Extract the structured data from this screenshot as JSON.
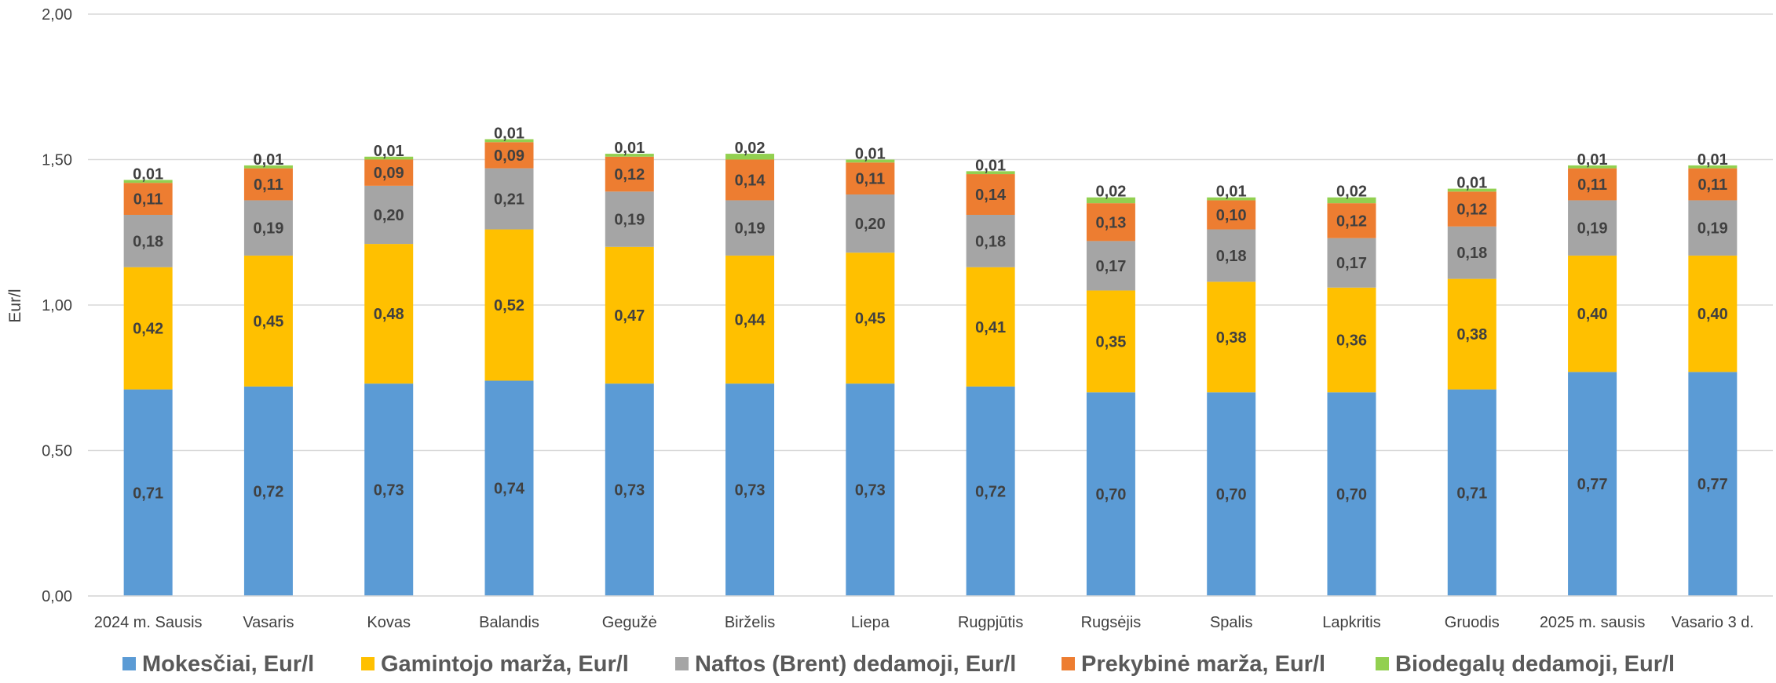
{
  "chart_data": {
    "type": "bar",
    "stacked": true,
    "ylabel": "Eur/l",
    "ylim": [
      0,
      2
    ],
    "yticks": [
      "0,00",
      "0,50",
      "1,00",
      "1,50",
      "2,00"
    ],
    "grid": true,
    "legend_position": "bottom",
    "categories": [
      "2024 m. Sausis",
      "Vasaris",
      "Kovas",
      "Balandis",
      "Gegužė",
      "Birželis",
      "Liepa",
      "Rugpjūtis",
      "Rugsėjis",
      "Spalis",
      "Lapkritis",
      "Gruodis",
      "2025 m. sausis",
      "Vasario 3 d."
    ],
    "series": [
      {
        "name": "Mokesčiai, Eur/l",
        "color": "#5B9BD5",
        "values": [
          0.71,
          0.72,
          0.73,
          0.74,
          0.73,
          0.73,
          0.73,
          0.72,
          0.7,
          0.7,
          0.7,
          0.71,
          0.77,
          0.77
        ],
        "labels": [
          "0,71",
          "0,72",
          "0,73",
          "0,74",
          "0,73",
          "0,73",
          "0,73",
          "0,72",
          "0,70",
          "0,70",
          "0,70",
          "0,71",
          "0,77",
          "0,77"
        ]
      },
      {
        "name": "Gamintojo marža, Eur/l",
        "color": "#FFC000",
        "values": [
          0.42,
          0.45,
          0.48,
          0.52,
          0.47,
          0.44,
          0.45,
          0.41,
          0.35,
          0.38,
          0.36,
          0.38,
          0.4,
          0.4
        ],
        "labels": [
          "0,42",
          "0,45",
          "0,48",
          "0,52",
          "0,47",
          "0,44",
          "0,45",
          "0,41",
          "0,35",
          "0,38",
          "0,36",
          "0,38",
          "0,40",
          "0,40"
        ]
      },
      {
        "name": "Naftos (Brent) dedamoji, Eur/l",
        "color": "#A5A5A5",
        "values": [
          0.18,
          0.19,
          0.2,
          0.21,
          0.19,
          0.19,
          0.2,
          0.18,
          0.17,
          0.18,
          0.17,
          0.18,
          0.19,
          0.19
        ],
        "labels": [
          "0,18",
          "0,19",
          "0,20",
          "0,21",
          "0,19",
          "0,19",
          "0,20",
          "0,18",
          "0,17",
          "0,18",
          "0,17",
          "0,18",
          "0,19",
          "0,19"
        ]
      },
      {
        "name": "Prekybinė marža, Eur/l",
        "color": "#ED7D31",
        "values": [
          0.11,
          0.11,
          0.09,
          0.09,
          0.12,
          0.14,
          0.11,
          0.14,
          0.13,
          0.1,
          0.12,
          0.12,
          0.11,
          0.11
        ],
        "labels": [
          "0,11",
          "0,11",
          "0,09",
          "0,09",
          "0,12",
          "0,14",
          "0,11",
          "0,14",
          "0,13",
          "0,10",
          "0,12",
          "0,12",
          "0,11",
          "0,11"
        ]
      },
      {
        "name": "Biodegalų dedamoji, Eur/l",
        "color": "#92D050",
        "values": [
          0.01,
          0.01,
          0.01,
          0.01,
          0.01,
          0.02,
          0.01,
          0.01,
          0.02,
          0.01,
          0.02,
          0.01,
          0.01,
          0.01
        ],
        "labels": [
          "0,01",
          "0,01",
          "0,01",
          "0,01",
          "0,01",
          "0,02",
          "0,01",
          "0,01",
          "0,02",
          "0,01",
          "0,02",
          "0,01",
          "0,01",
          "0,01"
        ]
      }
    ]
  }
}
